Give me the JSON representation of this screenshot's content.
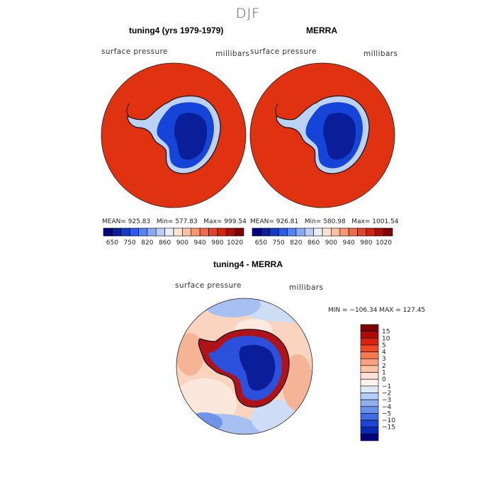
{
  "season": "DJF",
  "colors": {
    "ocean": "#e03210",
    "continent_deep": "#0a1e9a",
    "continent_mid": "#1444d8",
    "continent_edge": "#bcd2f5"
  },
  "panels": [
    {
      "title": "tuning4 (yrs 1979-1979)",
      "field": "surface pressure",
      "units": "millibars",
      "stats": {
        "mean": "MEAN= 925.83",
        "min": "Min= 577.83",
        "max": "Max= 999.54"
      }
    },
    {
      "title": "MERRA",
      "field": "surface pressure",
      "units": "millibars",
      "stats": {
        "mean": "MEAN= 926.81",
        "min": "Min= 580.98",
        "max": "Max= 1001.54"
      }
    }
  ],
  "top_colorbar": {
    "colors": [
      "#00007f",
      "#0a1e9e",
      "#1639c8",
      "#2d5ae6",
      "#5783ec",
      "#88aaf2",
      "#b8cdf7",
      "#e8eefa",
      "#fce3d3",
      "#f9c0a3",
      "#f79674",
      "#ef6b4b",
      "#e54327",
      "#cf2410",
      "#a5100a",
      "#7d0005"
    ],
    "labels": [
      "650",
      "750",
      "820",
      "860",
      "900",
      "940",
      "980",
      "1020"
    ]
  },
  "diff_panel": {
    "title": "tuning4 - MERRA",
    "field": "surface pressure",
    "units": "millibars",
    "minmax": "MIN = −106.34 MAX = 127.45",
    "colorbar": {
      "colors": [
        "#7f0000",
        "#b00a08",
        "#d8210e",
        "#ef4a25",
        "#f77952",
        "#f9a07e",
        "#fbc3a7",
        "#fde2d3",
        "#fdf2ec",
        "#dde8fb",
        "#b4ccf7",
        "#8eb0f1",
        "#6791ea",
        "#3f6ee2",
        "#1d46d8",
        "#0a28b8",
        "#00007f"
      ],
      "labels": [
        "15",
        "10",
        "5",
        "4",
        "3",
        "2",
        "1",
        "0",
        "−1",
        "−2",
        "−3",
        "−4",
        "−5",
        "−10",
        "−15"
      ]
    }
  }
}
